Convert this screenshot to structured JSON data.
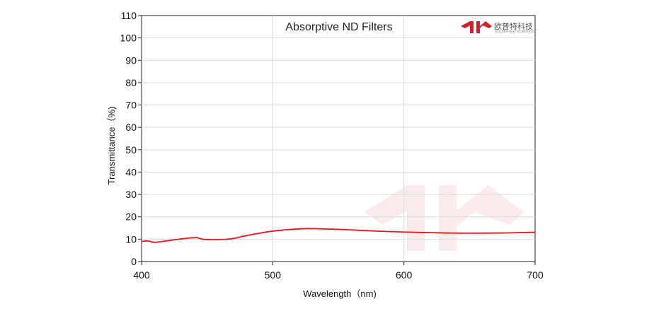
{
  "chart_data": {
    "type": "line",
    "title": "Absorptive ND Filters",
    "xlabel": "Wavelength（nm)",
    "ylabel": "Transmittance（%)",
    "xlim": [
      400,
      700
    ],
    "ylim": [
      0,
      110
    ],
    "x_ticks": [
      400,
      500,
      600,
      700
    ],
    "y_ticks": [
      0,
      10,
      20,
      30,
      40,
      50,
      60,
      70,
      80,
      90,
      100,
      110
    ],
    "grid": true,
    "series": [
      {
        "color": "#e8141c",
        "x": [
          400,
          405,
          410,
          420,
          430,
          440,
          442,
          448,
          460,
          470,
          480,
          500,
          520,
          530,
          550,
          580,
          600,
          620,
          640,
          660,
          680,
          700
        ],
        "y": [
          9.0,
          9.2,
          8.6,
          9.3,
          10.1,
          10.7,
          10.7,
          9.9,
          9.8,
          10.3,
          11.6,
          13.6,
          14.6,
          14.7,
          14.4,
          13.6,
          13.2,
          12.9,
          12.7,
          12.7,
          12.8,
          13.1
        ]
      }
    ]
  },
  "logo": {
    "cn_text": "欧普特科技",
    "en_text": "GOLDEN WAY SCIENTIFIC",
    "color": "#c8242b"
  }
}
